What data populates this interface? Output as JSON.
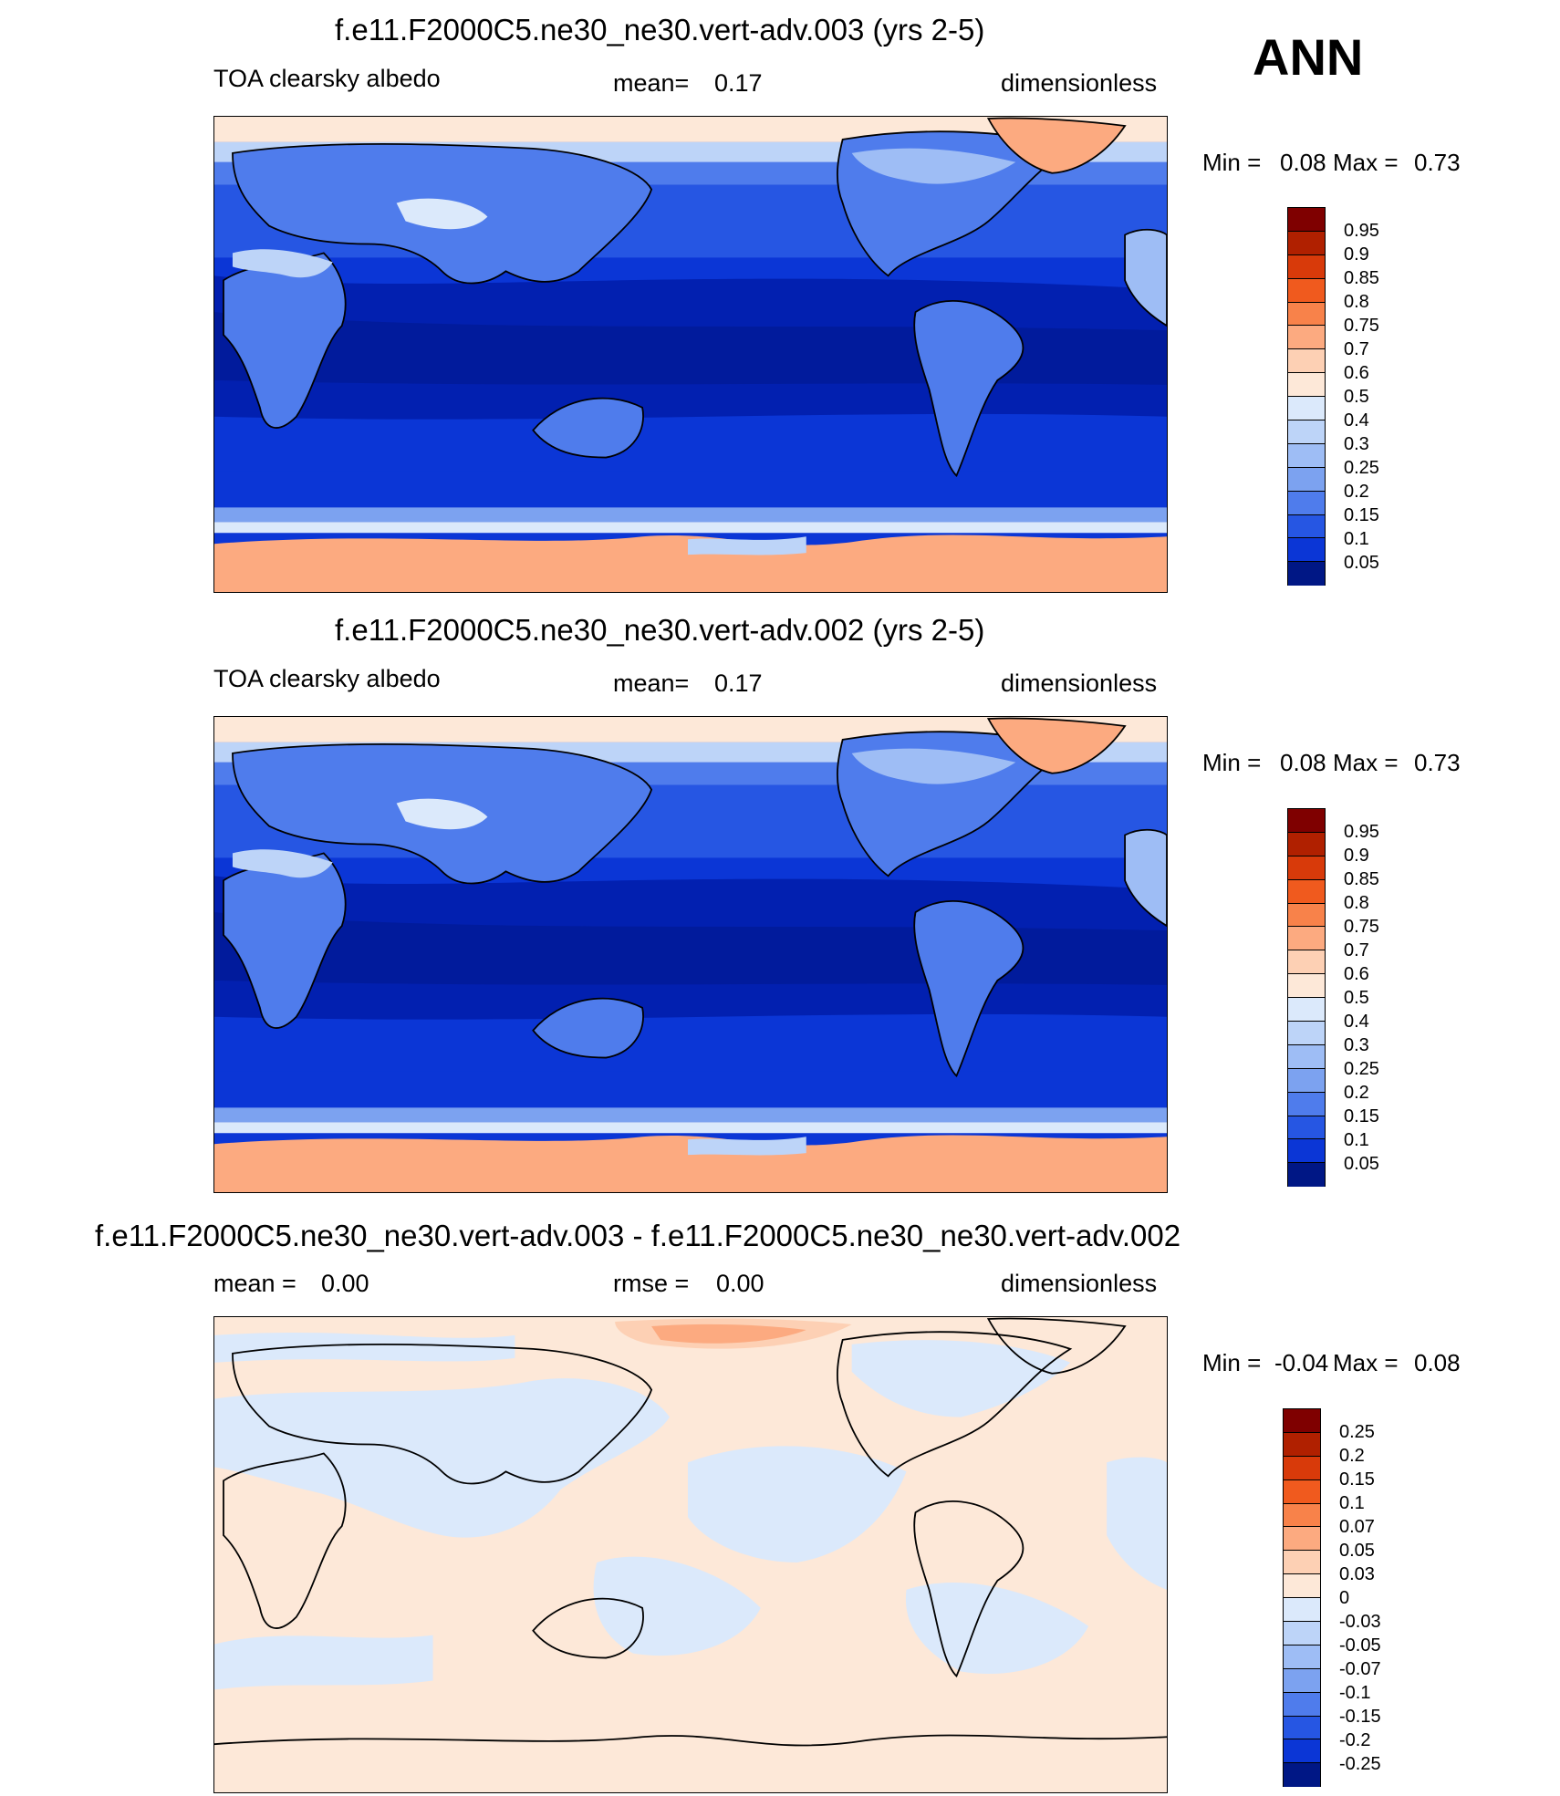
{
  "season": "ANN",
  "panels": [
    {
      "title": "f.e11.F2000C5.ne30_ne30.vert-adv.003 (yrs 2-5)",
      "left_label": "TOA clearsky albedo",
      "mean_label": "mean=",
      "mean_value": "0.17",
      "units": "dimensionless",
      "min_label": "Min =",
      "min_value": "0.08",
      "max_label": "Max =",
      "max_value": "0.73",
      "colorbar_levels": [
        "0.95",
        "0.9",
        "0.85",
        "0.8",
        "0.75",
        "0.7",
        "0.6",
        "0.5",
        "0.4",
        "0.3",
        "0.25",
        "0.2",
        "0.15",
        "0.1",
        "0.05"
      ]
    },
    {
      "title": "f.e11.F2000C5.ne30_ne30.vert-adv.002 (yrs 2-5)",
      "left_label": "TOA clearsky albedo",
      "mean_label": "mean=",
      "mean_value": "0.17",
      "units": "dimensionless",
      "min_label": "Min =",
      "min_value": "0.08",
      "max_label": "Max =",
      "max_value": "0.73",
      "colorbar_levels": [
        "0.95",
        "0.9",
        "0.85",
        "0.8",
        "0.75",
        "0.7",
        "0.6",
        "0.5",
        "0.4",
        "0.3",
        "0.25",
        "0.2",
        "0.15",
        "0.1",
        "0.05"
      ]
    },
    {
      "title": "f.e11.F2000C5.ne30_ne30.vert-adv.003 - f.e11.F2000C5.ne30_ne30.vert-adv.002",
      "left_label": "mean =",
      "left_value": "0.00",
      "mean_label": "rmse =",
      "mean_value": "0.00",
      "units": "dimensionless",
      "min_label": "Min =",
      "min_value": "-0.04",
      "max_label": "Max =",
      "max_value": "0.08",
      "colorbar_levels": [
        "0.25",
        "0.2",
        "0.15",
        "0.1",
        "0.07",
        "0.05",
        "0.03",
        "0",
        "-0.03",
        "-0.05",
        "-0.07",
        "-0.1",
        "-0.15",
        "-0.2",
        "-0.25"
      ]
    }
  ],
  "colors": {
    "abs_scale": [
      "#7f0000",
      "#b02000",
      "#d83a0a",
      "#f05a1e",
      "#f8824a",
      "#fcaa80",
      "#fdd0b4",
      "#fde8d8",
      "#dbe9fb",
      "#bdd4f8",
      "#9ebdf5",
      "#7ca2f0",
      "#4f7cec",
      "#2656e3",
      "#0b36d6",
      "#0220b0",
      "#001785"
    ],
    "diff_scale": [
      "#7f0000",
      "#b02000",
      "#d83a0a",
      "#f05a1e",
      "#f8824a",
      "#fcaa80",
      "#fdd0b4",
      "#fde8d8",
      "#dbe9fb",
      "#bdd4f8",
      "#9ebdf5",
      "#7ca2f0",
      "#4f7cec",
      "#2656e3",
      "#0b36d6",
      "#0220b0",
      "#001785"
    ]
  }
}
